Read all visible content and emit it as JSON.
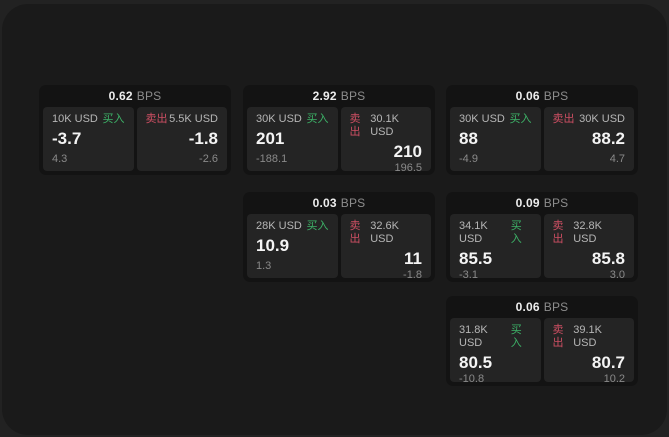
{
  "labels": {
    "bps_unit": "BPS",
    "buy": "买入",
    "sell": "卖出"
  },
  "colors": {
    "outer_bg": "#222222",
    "panel_bg": "#1a1a1a",
    "card_bg": "#131313",
    "tile_bg": "#242424",
    "buy_green": "#3db368",
    "sell_red": "#ce4f63",
    "value_white": "#f4f4f4",
    "muted_gray": "#8a8a8a"
  },
  "cards": [
    {
      "bps": "0.62",
      "buy": {
        "size": "10K USD",
        "price": "-3.7",
        "change": "4.3"
      },
      "sell": {
        "size": "5.5K USD",
        "price": "-1.8",
        "change": "-2.6"
      }
    },
    {
      "bps": "2.92",
      "buy": {
        "size": "30K USD",
        "price": "201",
        "change": "-188.1"
      },
      "sell": {
        "size": "30.1K USD",
        "price": "210",
        "change": "196.5"
      }
    },
    {
      "bps": "0.06",
      "buy": {
        "size": "30K USD",
        "price": "88",
        "change": "-4.9"
      },
      "sell": {
        "size": "30K USD",
        "price": "88.2",
        "change": "4.7"
      }
    },
    {
      "bps": "0.03",
      "buy": {
        "size": "28K USD",
        "price": "10.9",
        "change": "1.3"
      },
      "sell": {
        "size": "32.6K USD",
        "price": "11",
        "change": "-1.8"
      }
    },
    {
      "bps": "0.09",
      "buy": {
        "size": "34.1K USD",
        "price": "85.5",
        "change": "-3.1"
      },
      "sell": {
        "size": "32.8K USD",
        "price": "85.8",
        "change": "3.0"
      }
    },
    {
      "bps": "0.06",
      "buy": {
        "size": "31.8K USD",
        "price": "80.5",
        "change": "-10.8"
      },
      "sell": {
        "size": "39.1K USD",
        "price": "80.7",
        "change": "10.2"
      }
    }
  ]
}
